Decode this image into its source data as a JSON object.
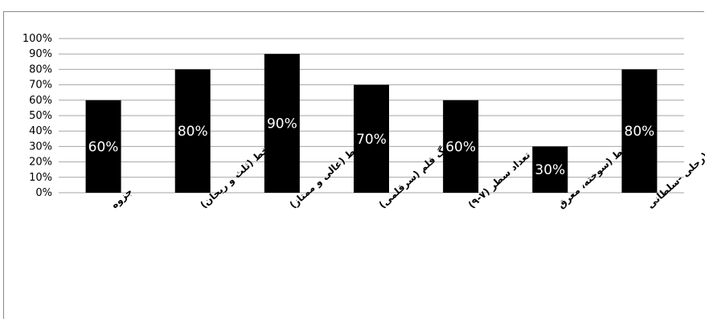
{
  "chart_data": {
    "type": "bar",
    "categories": [
      "جزوه",
      "خط (ثلث و ریحان)",
      "کیفیت خط (عالی و ممتاز)",
      "دانگ قلم (سرقلمی)",
      "تعداد سطر (۷-۹)",
      "نوع خط (سوخته، معرق",
      "قطع جلد (رحلی -سلطانی"
    ],
    "values": [
      60,
      80,
      90,
      70,
      60,
      30,
      80
    ],
    "data_labels": [
      "60%",
      "80%",
      "90%",
      "70%",
      "60%",
      "30%",
      "80%"
    ],
    "y_ticks": [
      "0%",
      "10%",
      "20%",
      "30%",
      "40%",
      "50%",
      "60%",
      "70%",
      "80%",
      "90%",
      "100%"
    ],
    "ylim": [
      0,
      100
    ],
    "grid": true,
    "legend": "none",
    "bar_color": "#000000",
    "grid_color": "#a6a6a6",
    "label_color": "#ffffff"
  }
}
